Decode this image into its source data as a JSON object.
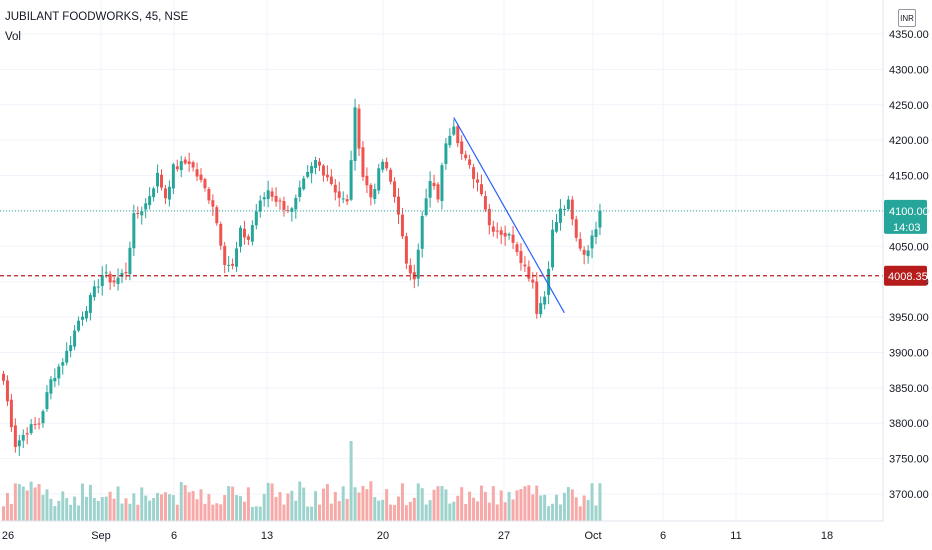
{
  "header": {
    "title": "JUBILANT FOODWORKS, 45, NSE",
    "indicator_label": "Vol",
    "currency_badge": "INR"
  },
  "price_badges": {
    "last_price": "4100.00",
    "countdown": "14:03",
    "level_price": "4008.35"
  },
  "colors": {
    "up": "#26a69a",
    "down": "#ef5350",
    "vol_up": "#9ed3cd",
    "vol_down": "#f7a9a7",
    "trendline": "#2962ff",
    "level_line": "#b71c1c",
    "last_price_badge": "#26a69a",
    "level_badge": "#b71c1c"
  },
  "chart_data": {
    "type": "candlestick",
    "title": "JUBILANT FOODWORKS, 45, NSE",
    "y_axis": {
      "ticks": [
        3700,
        3750,
        3800,
        3850,
        3900,
        3950,
        4000,
        4050,
        4100,
        4150,
        4200,
        4250,
        4300,
        4350
      ],
      "tick_labels": [
        "3700.00",
        "3750.00",
        "3800.00",
        "3850.00",
        "3900.00",
        "3950.00",
        "4000.00",
        "4050.00",
        "4100.00",
        "4150.00",
        "4200.00",
        "4250.00",
        "4300.00",
        "4350.00"
      ],
      "range": [
        3665,
        4375
      ]
    },
    "x_axis": {
      "tick_labels": [
        "26",
        "Sep",
        "6",
        "13",
        "20",
        "27",
        "Oct",
        "6",
        "11",
        "18"
      ]
    },
    "last_price": 4100.0,
    "horizontal_line": 4008.35,
    "trendline": {
      "start": [
        114,
        4232
      ],
      "end": [
        142,
        3956
      ]
    },
    "anchors": [
      [
        0,
        3860
      ],
      [
        3,
        3770
      ],
      [
        6,
        3790
      ],
      [
        9,
        3800
      ],
      [
        12,
        3860
      ],
      [
        16,
        3900
      ],
      [
        19,
        3945
      ],
      [
        22,
        3975
      ],
      [
        25,
        4010
      ],
      [
        28,
        4000
      ],
      [
        31,
        4015
      ],
      [
        33,
        4090
      ],
      [
        36,
        4110
      ],
      [
        39,
        4150
      ],
      [
        41,
        4120
      ],
      [
        43,
        4160
      ],
      [
        47,
        4170
      ],
      [
        50,
        4140
      ],
      [
        53,
        4110
      ],
      [
        56,
        4030
      ],
      [
        58,
        4020
      ],
      [
        60,
        4070
      ],
      [
        62,
        4060
      ],
      [
        64,
        4100
      ],
      [
        67,
        4130
      ],
      [
        70,
        4110
      ],
      [
        73,
        4100
      ],
      [
        76,
        4140
      ],
      [
        79,
        4170
      ],
      [
        82,
        4150
      ],
      [
        85,
        4120
      ],
      [
        87,
        4110
      ],
      [
        89,
        4240
      ],
      [
        91,
        4150
      ],
      [
        93,
        4120
      ],
      [
        96,
        4170
      ],
      [
        98,
        4140
      ],
      [
        100,
        4100
      ],
      [
        102,
        4020
      ],
      [
        104,
        4010
      ],
      [
        106,
        4090
      ],
      [
        108,
        4140
      ],
      [
        110,
        4120
      ],
      [
        112,
        4200
      ],
      [
        114,
        4225
      ],
      [
        116,
        4180
      ],
      [
        118,
        4160
      ],
      [
        121,
        4130
      ],
      [
        123,
        4080
      ],
      [
        126,
        4070
      ],
      [
        129,
        4060
      ],
      [
        132,
        4020
      ],
      [
        134,
        4000
      ],
      [
        135,
        3960
      ],
      [
        137,
        3980
      ],
      [
        139,
        4070
      ],
      [
        141,
        4100
      ],
      [
        143,
        4110
      ],
      [
        145,
        4060
      ],
      [
        147,
        4040
      ],
      [
        149,
        4060
      ],
      [
        151,
        4100
      ]
    ],
    "volume_spikes": {
      "88": 3.6,
      "66": 0.8,
      "75": 1.1,
      "26": 1.5,
      "57": 1.5,
      "134": 1.6
    }
  }
}
